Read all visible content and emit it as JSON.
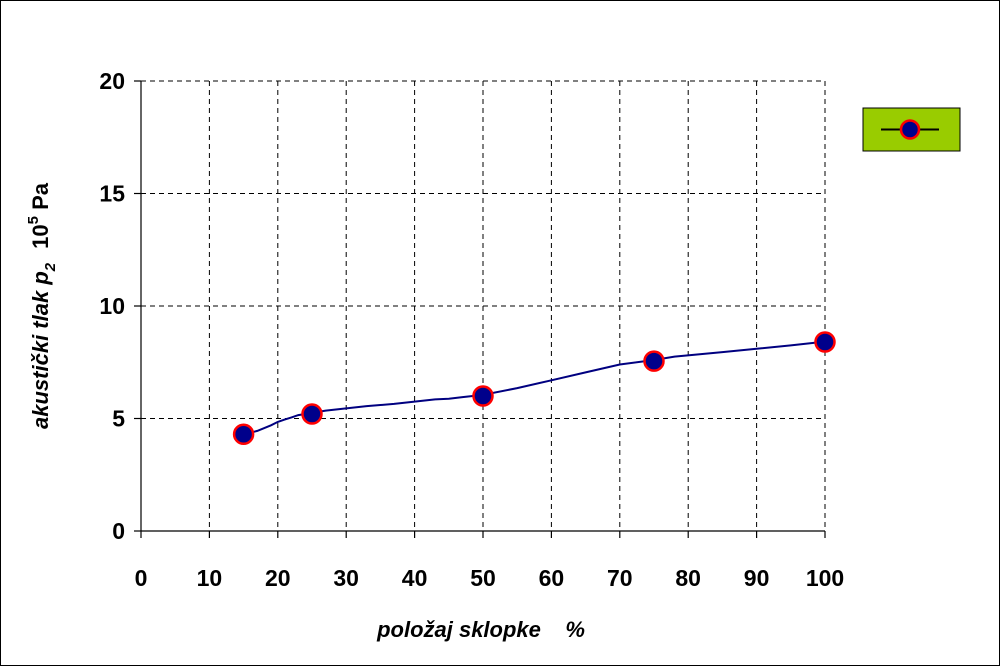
{
  "colors": {
    "line": "#000080",
    "marker_fill": "#00008B",
    "marker_stroke": "#FF0000",
    "legend_bg": "#99CC00",
    "grid": "#000000"
  },
  "chart_data": {
    "type": "line",
    "title": "",
    "xlabel": "položaj sklopke    %",
    "ylabel": {
      "main": "akustički tlak ",
      "symbol": "p",
      "symbol_sub": "2",
      "unit_base": "10",
      "unit_exp": "5",
      "unit": " Pa"
    },
    "xlim": [
      0,
      100
    ],
    "ylim": [
      0,
      20
    ],
    "x_ticks": [
      0,
      10,
      20,
      30,
      40,
      50,
      60,
      70,
      80,
      90,
      100
    ],
    "y_ticks": [
      0,
      5,
      10,
      15,
      20
    ],
    "grid": true,
    "legend": {
      "position": "top-right",
      "entries": [
        ""
      ]
    },
    "series": [
      {
        "markers": {
          "x": [
            15,
            25,
            50,
            75,
            100
          ],
          "y": [
            4.3,
            5.2,
            6.0,
            7.55,
            8.4
          ]
        },
        "curve": {
          "x": [
            15,
            17,
            19,
            20,
            21,
            22,
            23,
            24,
            25,
            27,
            30,
            33,
            35,
            37,
            40,
            43,
            45,
            47,
            50,
            55,
            60,
            65,
            70,
            75,
            78,
            85,
            90,
            95,
            100
          ],
          "y": [
            4.3,
            4.45,
            4.7,
            4.85,
            4.95,
            5.05,
            5.15,
            5.2,
            5.25,
            5.35,
            5.45,
            5.55,
            5.6,
            5.65,
            5.75,
            5.85,
            5.88,
            5.95,
            6.05,
            6.35,
            6.7,
            7.05,
            7.4,
            7.6,
            7.75,
            7.95,
            8.1,
            8.25,
            8.42
          ]
        }
      }
    ]
  }
}
